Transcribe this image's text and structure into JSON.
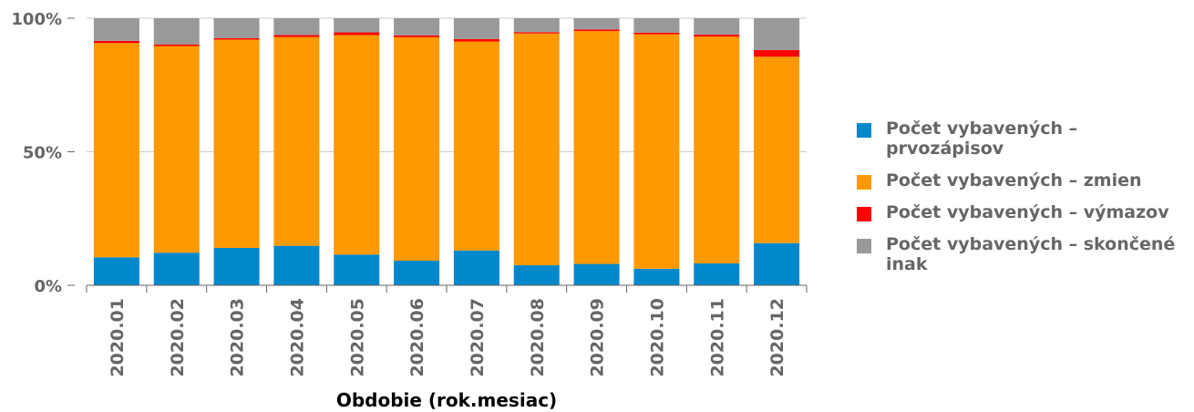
{
  "chart_data": {
    "type": "bar",
    "stacked": "percent",
    "xlabel": "Obdobie (rok.mesiac)",
    "ylabel": "",
    "ylim": [
      0,
      100
    ],
    "y_ticks": [
      "0%",
      "50%",
      "100%"
    ],
    "grid": true,
    "legend_position": "right",
    "categories": [
      "2020.01",
      "2020.02",
      "2020.03",
      "2020.04",
      "2020.05",
      "2020.06",
      "2020.07",
      "2020.08",
      "2020.09",
      "2020.10",
      "2020.11",
      "2020.12"
    ],
    "series": [
      {
        "name": "Počet vybavených – prvozápisov",
        "color": "#0088cc",
        "values": [
          10.5,
          12.2,
          14,
          14.8,
          11.5,
          9.2,
          13,
          7.5,
          8,
          6.2,
          8.2,
          15.8
        ]
      },
      {
        "name": "Počet vybavených – zmien",
        "color": "#ff9900",
        "values": [
          80.2,
          77.4,
          78,
          78.2,
          82.2,
          83.7,
          78.3,
          86.8,
          87.2,
          87.8,
          84.9,
          69.8
        ]
      },
      {
        "name": "Počet vybavených – výmazov",
        "color": "#ff0000",
        "values": [
          0.8,
          0.6,
          0.5,
          0.7,
          1.0,
          0.7,
          0.9,
          0.5,
          0.6,
          0.6,
          0.8,
          2.5
        ]
      },
      {
        "name": "Počet vybavených – skončené inak",
        "color": "#999999",
        "values": [
          8.5,
          9.8,
          7.5,
          6.3,
          5.3,
          6.4,
          7.8,
          5.2,
          4.2,
          5.4,
          6.1,
          11.9
        ]
      }
    ]
  }
}
